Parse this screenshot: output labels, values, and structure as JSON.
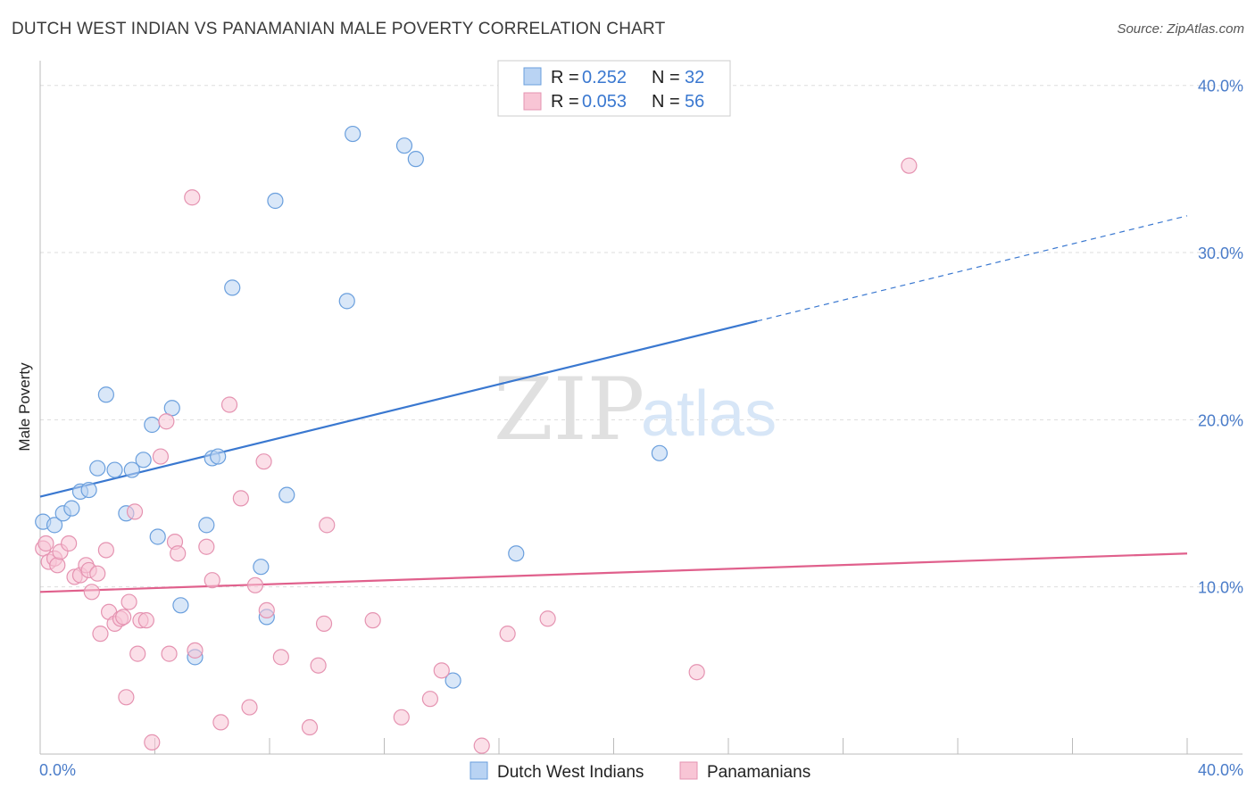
{
  "title": "DUTCH WEST INDIAN VS PANAMANIAN MALE POVERTY CORRELATION CHART",
  "source": "Source: ZipAtlas.com",
  "watermark": {
    "zip": "ZIP",
    "atlas": "atlas"
  },
  "colors": {
    "blue": "#3a78d0",
    "blue_fill": "#b9d3f3",
    "pink": "#e0608c",
    "pink_fill": "#f8c5d5",
    "tick": "#4a7cc9",
    "grid": "#dddddd"
  },
  "legend": {
    "r_label": "R =",
    "n_label": "N =",
    "entries": [
      {
        "r": "0.252",
        "n": "32",
        "color": "blue"
      },
      {
        "r": "0.053",
        "n": "56",
        "color": "pink"
      }
    ]
  },
  "bottom_legend": [
    "Dutch West Indians",
    "Panamanians"
  ],
  "chart_data": {
    "type": "scatter",
    "ylabel": "Male Poverty",
    "xlim": [
      0,
      40
    ],
    "ylim": [
      0,
      41
    ],
    "x_ticks": [
      "0.0%",
      "40.0%"
    ],
    "y_ticks": [
      {
        "v": 10,
        "label": "10.0%"
      },
      {
        "v": 20,
        "label": "20.0%"
      },
      {
        "v": 30,
        "label": "30.0%"
      },
      {
        "v": 40,
        "label": "40.0%"
      }
    ],
    "grid": true,
    "series": [
      {
        "name": "Dutch West Indians",
        "color": "blue",
        "points": [
          [
            0.1,
            13.9
          ],
          [
            0.5,
            13.7
          ],
          [
            0.8,
            14.4
          ],
          [
            1.1,
            14.7
          ],
          [
            1.4,
            15.7
          ],
          [
            1.7,
            15.8
          ],
          [
            2.0,
            17.1
          ],
          [
            2.3,
            21.5
          ],
          [
            2.6,
            17.0
          ],
          [
            3.0,
            14.4
          ],
          [
            3.2,
            17.0
          ],
          [
            3.6,
            17.6
          ],
          [
            3.9,
            19.7
          ],
          [
            4.1,
            13.0
          ],
          [
            4.6,
            20.7
          ],
          [
            4.9,
            8.9
          ],
          [
            5.4,
            5.8
          ],
          [
            5.8,
            13.7
          ],
          [
            6.0,
            17.7
          ],
          [
            6.2,
            17.8
          ],
          [
            6.7,
            27.9
          ],
          [
            7.7,
            11.2
          ],
          [
            7.9,
            8.2
          ],
          [
            8.2,
            33.1
          ],
          [
            8.6,
            15.5
          ],
          [
            10.7,
            27.1
          ],
          [
            10.9,
            37.1
          ],
          [
            12.7,
            36.4
          ],
          [
            13.1,
            35.6
          ],
          [
            14.4,
            4.4
          ],
          [
            16.6,
            12.0
          ],
          [
            21.6,
            18.0
          ]
        ],
        "trend": {
          "x0": 0,
          "y0": 15.4,
          "x1": 25.0,
          "y1": 25.9,
          "dash_x1": 40.0,
          "dash_y1": 32.2
        }
      },
      {
        "name": "Panamanians",
        "color": "pink",
        "points": [
          [
            0.1,
            12.3
          ],
          [
            0.2,
            12.6
          ],
          [
            0.3,
            11.5
          ],
          [
            0.5,
            11.7
          ],
          [
            0.6,
            11.3
          ],
          [
            0.7,
            12.1
          ],
          [
            1.0,
            12.6
          ],
          [
            1.2,
            10.6
          ],
          [
            1.4,
            10.7
          ],
          [
            1.6,
            11.3
          ],
          [
            1.7,
            11.0
          ],
          [
            1.8,
            9.7
          ],
          [
            2.0,
            10.8
          ],
          [
            2.1,
            7.2
          ],
          [
            2.3,
            12.2
          ],
          [
            2.4,
            8.5
          ],
          [
            2.6,
            7.8
          ],
          [
            2.8,
            8.1
          ],
          [
            2.9,
            8.2
          ],
          [
            3.0,
            3.4
          ],
          [
            3.1,
            9.1
          ],
          [
            3.3,
            14.5
          ],
          [
            3.4,
            6.0
          ],
          [
            3.5,
            8.0
          ],
          [
            3.7,
            8.0
          ],
          [
            3.9,
            0.7
          ],
          [
            4.2,
            17.8
          ],
          [
            4.4,
            19.9
          ],
          [
            4.5,
            6.0
          ],
          [
            4.7,
            12.7
          ],
          [
            4.8,
            12.0
          ],
          [
            5.3,
            33.3
          ],
          [
            5.4,
            6.2
          ],
          [
            5.8,
            12.4
          ],
          [
            6.0,
            10.4
          ],
          [
            6.3,
            1.9
          ],
          [
            6.6,
            20.9
          ],
          [
            7.0,
            15.3
          ],
          [
            7.3,
            2.8
          ],
          [
            7.5,
            10.1
          ],
          [
            7.8,
            17.5
          ],
          [
            7.9,
            8.6
          ],
          [
            8.4,
            5.8
          ],
          [
            9.4,
            1.6
          ],
          [
            9.7,
            5.3
          ],
          [
            9.9,
            7.8
          ],
          [
            10.0,
            13.7
          ],
          [
            11.6,
            8.0
          ],
          [
            12.6,
            2.2
          ],
          [
            13.6,
            3.3
          ],
          [
            14.0,
            5.0
          ],
          [
            15.4,
            0.5
          ],
          [
            16.3,
            7.2
          ],
          [
            17.7,
            8.1
          ],
          [
            22.9,
            4.9
          ],
          [
            30.3,
            35.2
          ]
        ],
        "trend": {
          "x0": 0,
          "y0": 9.7,
          "x1": 40.0,
          "y1": 12.0
        }
      }
    ]
  }
}
